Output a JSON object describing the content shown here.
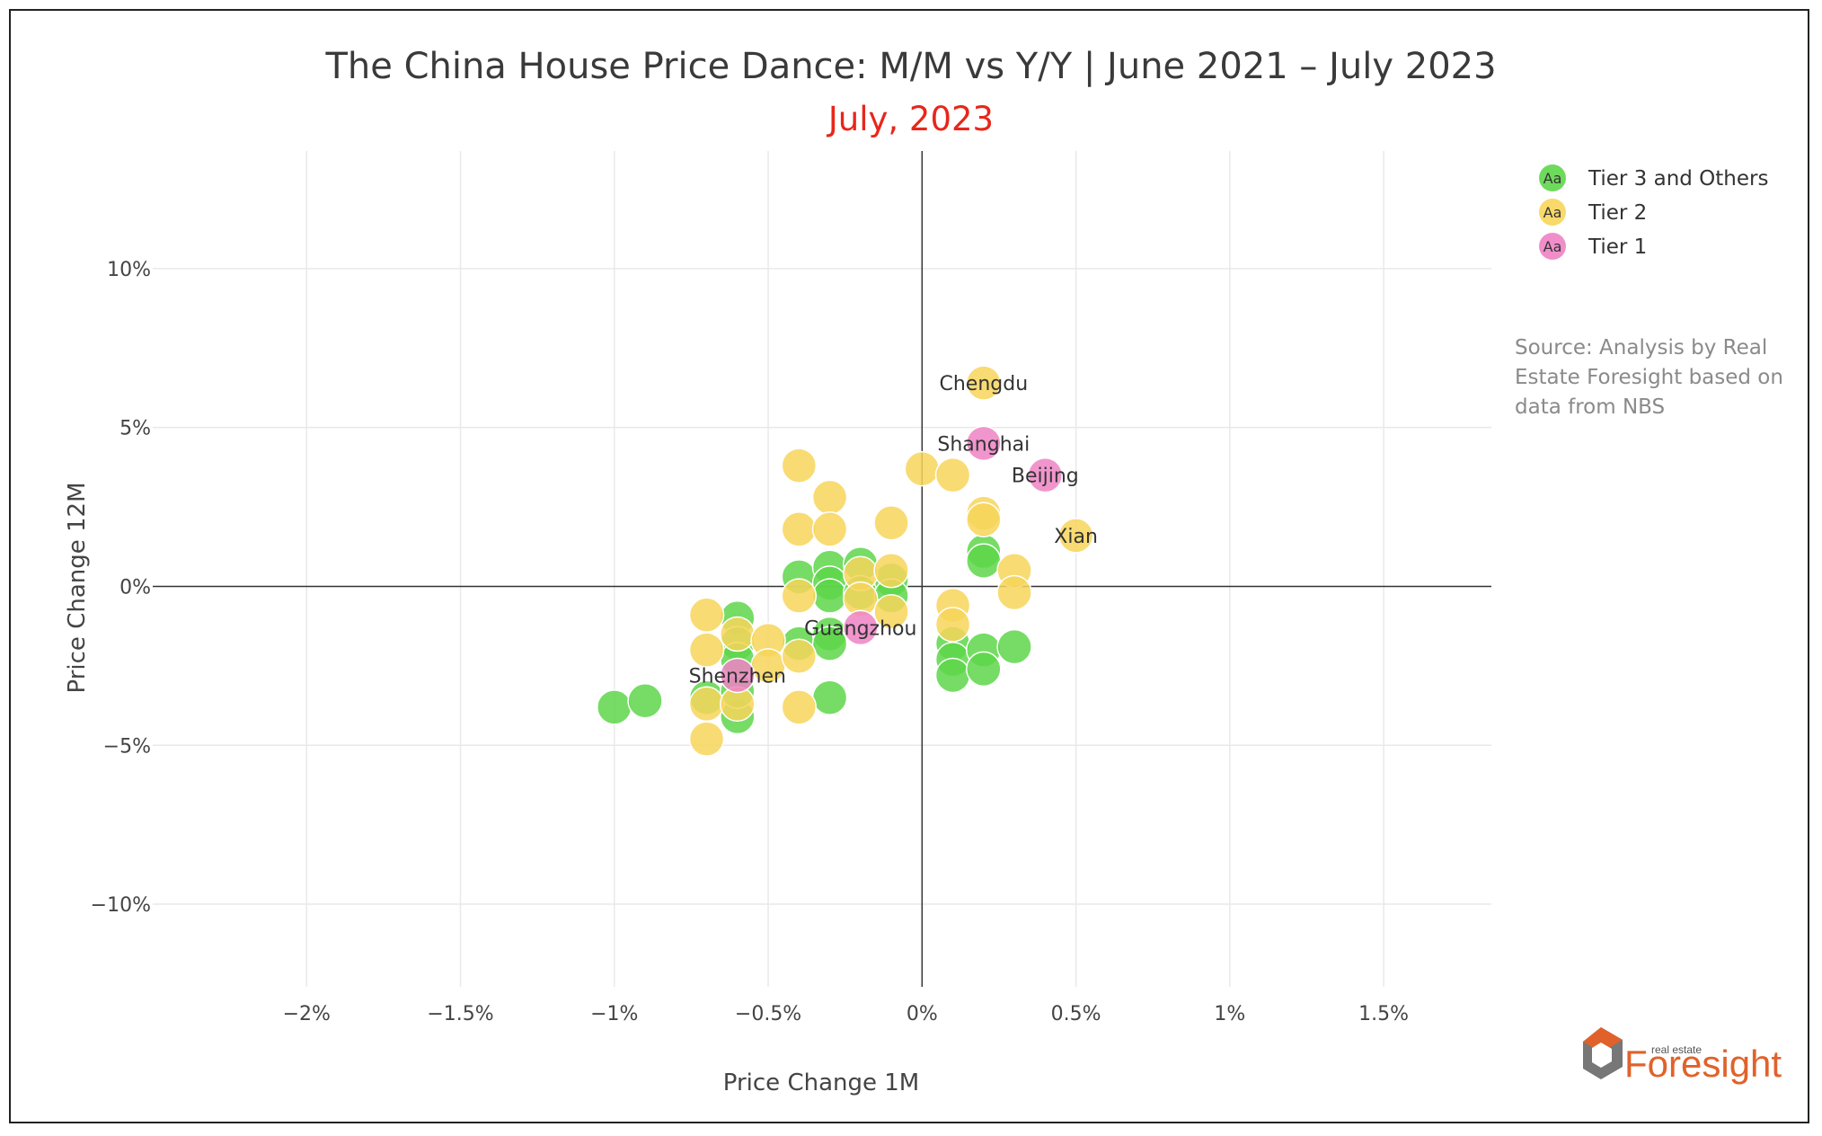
{
  "chart_data": {
    "type": "scatter",
    "title": "The China House Price Dance: M/M vs Y/Y | June 2021 – July 2023",
    "subtitle": "July, 2023",
    "xlabel": "Price Change 1M",
    "ylabel": "Price Change 12M",
    "xlim": [
      -2.5,
      1.85
    ],
    "ylim": [
      -12.6,
      13.7
    ],
    "x_ticks": [
      {
        "value": -2,
        "label": "−2%"
      },
      {
        "value": -1.5,
        "label": "−1.5%"
      },
      {
        "value": -1,
        "label": "−1%"
      },
      {
        "value": -0.5,
        "label": "−0.5%"
      },
      {
        "value": 0,
        "label": "0%"
      },
      {
        "value": 0.5,
        "label": "0.5%"
      },
      {
        "value": 1,
        "label": "1%"
      },
      {
        "value": 1.5,
        "label": "1.5%"
      }
    ],
    "y_ticks": [
      {
        "value": 10,
        "label": "10%"
      },
      {
        "value": 5,
        "label": "5%"
      },
      {
        "value": 0,
        "label": "0%"
      },
      {
        "value": -5,
        "label": "−5%"
      },
      {
        "value": -10,
        "label": "−10%"
      }
    ],
    "grid": true,
    "legend_position": "top-right",
    "series": [
      {
        "name": "Tier 3 and Others",
        "color": "#5ed64a",
        "points": [
          {
            "x": -1.0,
            "y": -3.8
          },
          {
            "x": -0.9,
            "y": -3.6
          },
          {
            "x": -0.7,
            "y": -3.5
          },
          {
            "x": -0.6,
            "y": -4.1
          },
          {
            "x": -0.6,
            "y": -3.3
          },
          {
            "x": -0.6,
            "y": -1.0
          },
          {
            "x": -0.6,
            "y": -1.8
          },
          {
            "x": -0.6,
            "y": -2.3
          },
          {
            "x": -0.4,
            "y": 0.3
          },
          {
            "x": -0.4,
            "y": -1.8
          },
          {
            "x": -0.3,
            "y": 0.6
          },
          {
            "x": -0.3,
            "y": 0.1
          },
          {
            "x": -0.3,
            "y": -0.3
          },
          {
            "x": -0.3,
            "y": -1.5
          },
          {
            "x": -0.3,
            "y": -1.8
          },
          {
            "x": -0.3,
            "y": -3.5
          },
          {
            "x": -0.2,
            "y": 0.7
          },
          {
            "x": -0.2,
            "y": -0.2
          },
          {
            "x": -0.1,
            "y": 0.2
          },
          {
            "x": -0.1,
            "y": -0.3
          },
          {
            "x": 0.1,
            "y": -1.8
          },
          {
            "x": 0.1,
            "y": -2.3
          },
          {
            "x": 0.1,
            "y": -2.8
          },
          {
            "x": 0.2,
            "y": 1.1
          },
          {
            "x": 0.2,
            "y": 0.8
          },
          {
            "x": 0.2,
            "y": -2.0
          },
          {
            "x": 0.2,
            "y": -2.6
          },
          {
            "x": 0.3,
            "y": -1.9
          }
        ]
      },
      {
        "name": "Tier 2",
        "color": "#f7d55a",
        "points": [
          {
            "x": -0.7,
            "y": -0.9
          },
          {
            "x": -0.7,
            "y": -2.0
          },
          {
            "x": -0.7,
            "y": -3.7
          },
          {
            "x": -0.7,
            "y": -4.8
          },
          {
            "x": -0.6,
            "y": -1.5
          },
          {
            "x": -0.6,
            "y": -3.7
          },
          {
            "x": -0.5,
            "y": -1.7
          },
          {
            "x": -0.5,
            "y": -2.5
          },
          {
            "x": -0.4,
            "y": 3.8
          },
          {
            "x": -0.4,
            "y": 1.8
          },
          {
            "x": -0.4,
            "y": -0.3
          },
          {
            "x": -0.4,
            "y": -2.2
          },
          {
            "x": -0.4,
            "y": -3.8
          },
          {
            "x": -0.3,
            "y": 2.8
          },
          {
            "x": -0.3,
            "y": 1.8
          },
          {
            "x": -0.2,
            "y": 0.4
          },
          {
            "x": -0.2,
            "y": -0.4
          },
          {
            "x": -0.1,
            "y": 2.0
          },
          {
            "x": -0.1,
            "y": 0.5
          },
          {
            "x": -0.1,
            "y": -0.8
          },
          {
            "x": 0.0,
            "y": 3.7
          },
          {
            "x": 0.1,
            "y": 3.5
          },
          {
            "x": 0.1,
            "y": -0.6
          },
          {
            "x": 0.1,
            "y": -1.2
          },
          {
            "x": 0.2,
            "y": 6.4,
            "label": "Chengdu"
          },
          {
            "x": 0.2,
            "y": 2.3
          },
          {
            "x": 0.2,
            "y": 2.1
          },
          {
            "x": 0.3,
            "y": 0.5
          },
          {
            "x": 0.3,
            "y": -0.2
          },
          {
            "x": 0.5,
            "y": 1.6,
            "label": "Xian"
          }
        ]
      },
      {
        "name": "Tier 1",
        "color": "#ee82c4",
        "points": [
          {
            "x": 0.2,
            "y": 4.5,
            "label": "Shanghai"
          },
          {
            "x": 0.4,
            "y": 3.5,
            "label": "Beijing"
          },
          {
            "x": -0.2,
            "y": -1.3,
            "label": "Guangzhou"
          },
          {
            "x": -0.6,
            "y": -2.8,
            "label": "Shenzhen"
          }
        ]
      }
    ]
  },
  "legend": {
    "swatch_text": "Aa"
  },
  "source_lines": [
    "Source: Analysis by Real",
    "Estate Foresight based on",
    "data from NBS"
  ],
  "logo": {
    "small": "real estate",
    "big": "Foresight"
  }
}
